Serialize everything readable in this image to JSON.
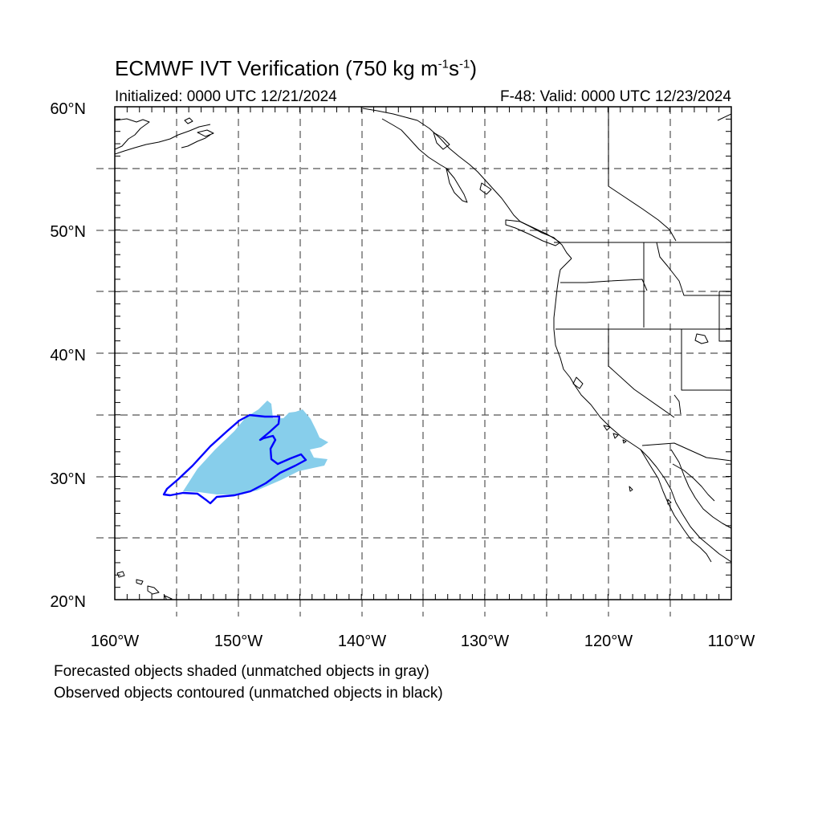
{
  "title": {
    "main": "ECMWF IVT Verification (750 kg m",
    "sup1": "-1",
    "mid": "s",
    "sup2": "-1",
    "end": ")"
  },
  "initialized": "Initialized: 0000 UTC 12/21/2024",
  "valid": "F-48: Valid: 0000 UTC 12/23/2024",
  "lat_labels": [
    "60°N",
    "50°N",
    "40°N",
    "30°N",
    "20°N"
  ],
  "lon_labels": [
    "160°W",
    "150°W",
    "140°W",
    "130°W",
    "120°W",
    "110°W"
  ],
  "notes": [
    "Forecasted objects shaded (unmatched objects in gray)",
    "Observed objects contoured (unmatched objects in black)"
  ],
  "map": {
    "lon_range": [
      -160,
      -110
    ],
    "lat_range": [
      20,
      60
    ],
    "grid_interval_deg": 5,
    "forecast_fill_color": "#87ceeb",
    "observed_contour_color": "#0000ff",
    "coast_color": "#000000"
  }
}
